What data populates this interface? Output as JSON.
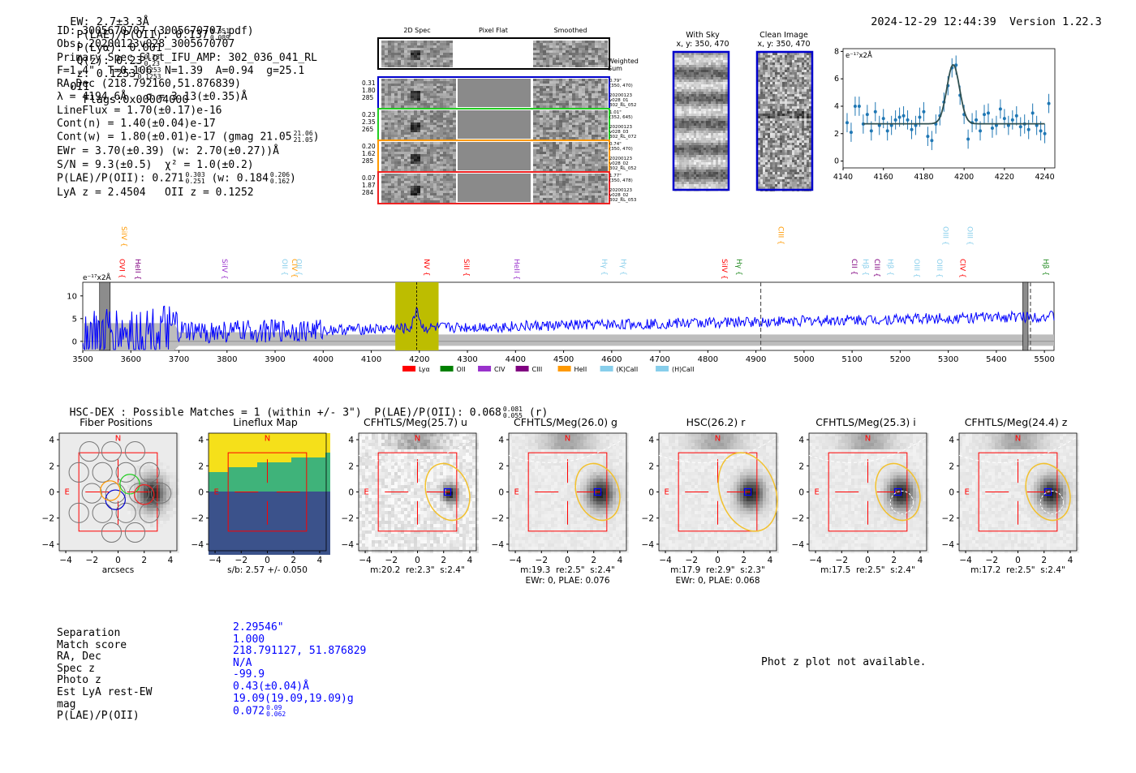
{
  "header": {
    "ew": "EW: 2.7±3.3Å",
    "plae_label": "P(LAE)/P(OII): 0.137",
    "plae_hi": "0.351",
    "plae_lo": "0.089",
    "plya": "P(Lyα): 0.001",
    "qz_label": "Q(z): 0.23",
    "qz_hi": "0.23",
    "qz_lo": "0.23",
    "z_label": "z: 0.1253",
    "z_hi": "0.1253",
    "z_lo": "0.1253",
    "z_line": "OII",
    "flags": "Flags:0x00004000",
    "datetime": "2024-12-29 12:44:39",
    "version": "Version 1.22.3"
  },
  "info": {
    "id": "ID: 3005670707 (3005670707.pdf)",
    "obs": "Obs: 20200123v028_3005670707",
    "primary": "Primary Spec_Slot_IFU_AMP: 302_036_041_RL",
    "params": "F=1.4\"  T=0.106  N=1.39  A=0.94  g=25.1",
    "radec": "RA,Dec (218.792160,51.876839)",
    "lambda": "λ = 4194.6Å   σ = 3.13(±0.35)Å",
    "lineflux": "LineFlux = 1.70(±0.17)e-16",
    "contn": "Cont(n) = 1.40(±0.04)e-17",
    "contw": "Cont(w) = 1.80(±0.01)e-17 (gmag 21.05",
    "contw_hi": "21.06",
    "contw_lo": "21.05",
    "ewr": "EWr = 3.70(±0.39) (w: 2.70(±0.27))Å",
    "sn": "S/N = 9.3(±0.5)  χ² = 1.0(±0.2)",
    "plae": "P(LAE)/P(OII): 0.271",
    "plae_hi": "0.303",
    "plae_lo": "0.251",
    "plae_w": "(w: 0.184",
    "plae_w_hi": "0.206",
    "plae_w_lo": "0.162",
    "lya": "LyA z = 2.4504   OII z = 0.1252"
  },
  "stamps": {
    "col_titles": [
      "2D Spec",
      "Pixel Flat",
      "Smoothed"
    ],
    "weighted_sum": [
      "Weighted",
      "Sum"
    ],
    "rows": [
      {
        "left": [
          "0.31",
          "1.80",
          "285"
        ],
        "right": [
          "0.79\"",
          "(350, 470)",
          "",
          "20200123",
          "v028_01",
          "302_RL_052"
        ],
        "color": "#0000cc"
      },
      {
        "left": [
          "0.23",
          "2.35",
          "265"
        ],
        "right": [
          "1.01\"",
          "(352, 645)",
          "",
          "20200123",
          "v028_03",
          "302_RL_072"
        ],
        "color": "#22cc22"
      },
      {
        "left": [
          "0.20",
          "1.62",
          "285"
        ],
        "right": [
          "0.74\"",
          "(350, 470)",
          "",
          "20200123",
          "v028_02",
          "302_RL_052"
        ],
        "color": "#ff9900"
      },
      {
        "left": [
          "0.07",
          "1.87",
          "284"
        ],
        "right": [
          "1.77\"",
          "(350, 478)",
          "",
          "20200123",
          "v028_02",
          "302_RL_053"
        ],
        "color": "#ee2222"
      }
    ],
    "with_sky": "With Sky",
    "with_sky_xy": "x, y: 350, 470",
    "clean": "Clean Image",
    "clean_xy": "x, y: 350, 470"
  },
  "colors": {
    "spectrum": "#0000ff",
    "fit": "#1f77b4",
    "highlight": "#bdbd00",
    "red": "#ff0000",
    "yellow": "#f2c12e",
    "hscblue": "#0000ff"
  },
  "chart_data": [
    {
      "type": "scatter",
      "title": "Line fit zoom",
      "ylabel": "e⁻¹⁷x2Å",
      "xlim": [
        4140,
        4245
      ],
      "ylim": [
        -0.5,
        8.2
      ],
      "xticks": [
        4140,
        4160,
        4180,
        4200,
        4220,
        4240
      ],
      "yticks": [
        0,
        2,
        4,
        6,
        8
      ],
      "x": [
        4142,
        4144,
        4146,
        4148,
        4150,
        4152,
        4154,
        4156,
        4158,
        4160,
        4162,
        4164,
        4166,
        4168,
        4170,
        4172,
        4174,
        4176,
        4178,
        4180,
        4182,
        4184,
        4186,
        4188,
        4190,
        4192,
        4194,
        4196,
        4198,
        4200,
        4202,
        4204,
        4206,
        4208,
        4210,
        4212,
        4214,
        4216,
        4218,
        4220,
        4222,
        4224,
        4226,
        4228,
        4230,
        4232,
        4234,
        4236,
        4238,
        4240,
        4242
      ],
      "y": [
        2.8,
        2.1,
        4.0,
        4.0,
        2.7,
        3.4,
        2.2,
        3.6,
        2.6,
        3.1,
        2.2,
        2.6,
        3.0,
        3.2,
        3.3,
        3.0,
        2.3,
        2.6,
        3.2,
        3.6,
        1.8,
        1.5,
        2.7,
        3.3,
        4.3,
        5.5,
        6.8,
        7.0,
        4.8,
        3.4,
        1.6,
        2.8,
        3.0,
        2.2,
        3.4,
        3.5,
        2.4,
        2.6,
        3.8,
        3.1,
        2.6,
        3.0,
        3.3,
        2.5,
        2.7,
        2.3,
        3.5,
        2.6,
        2.2,
        2.0,
        4.2
      ],
      "fit": {
        "continuum": 2.72,
        "amplitude": 4.3,
        "center": 4194.6,
        "sigma": 3.13,
        "xrange": [
          4150,
          4240
        ]
      }
    },
    {
      "type": "line",
      "title": "Full spectrum",
      "ylabel": "e⁻¹⁷x2Å",
      "xlim": [
        3500,
        5520
      ],
      "ylim": [
        -2,
        13
      ],
      "xticks": [
        3500,
        3600,
        3700,
        3800,
        3900,
        4000,
        4100,
        4200,
        4300,
        4400,
        4500,
        4600,
        4700,
        4800,
        4900,
        5000,
        5100,
        5200,
        5300,
        5400,
        5500
      ],
      "yticks": [
        0,
        5,
        10
      ],
      "highlight_range": [
        4150,
        4240
      ],
      "line_center": 4194.6,
      "dashed_lines": [
        4910,
        5471
      ],
      "grey_bands": [
        [
          3535,
          3557
        ],
        [
          5455,
          5466
        ]
      ],
      "line_labels": [
        {
          "name": "SiIV",
          "wave": 3576,
          "row": 0,
          "color": "#ff9900"
        },
        {
          "name": "OVI",
          "wave": 3572,
          "row": 1,
          "color": "#ff0000"
        },
        {
          "name": "HeII",
          "wave": 3605,
          "row": 1,
          "color": "#800080"
        },
        {
          "name": "SiIV",
          "wave": 3785,
          "row": 1,
          "color": "#9932cc"
        },
        {
          "name": "OII",
          "wave": 3910,
          "row": 1,
          "color": "#87ceeb"
        },
        {
          "name": "CIV",
          "wave": 3930,
          "row": 1,
          "color": "#ff9900"
        },
        {
          "name": "OII",
          "wave": 3940,
          "row": 1,
          "color": "#87ceeb"
        },
        {
          "name": "NV",
          "wave": 4205,
          "row": 1,
          "color": "#ff0000"
        },
        {
          "name": "SiII",
          "wave": 4288,
          "row": 1,
          "color": "#ff0000"
        },
        {
          "name": "HeII",
          "wave": 4393,
          "row": 1,
          "color": "#9932cc"
        },
        {
          "name": "Hγ",
          "wave": 4575,
          "row": 1,
          "color": "#87ceeb"
        },
        {
          "name": "Hγ",
          "wave": 4615,
          "row": 1,
          "color": "#87ceeb"
        },
        {
          "name": "CIII",
          "wave": 4942,
          "row": 0,
          "color": "#ff9900"
        },
        {
          "name": "SiIV",
          "wave": 4825,
          "row": 1,
          "color": "#ff0000"
        },
        {
          "name": "Hγ",
          "wave": 4855,
          "row": 1,
          "color": "#228b22"
        },
        {
          "name": "CII",
          "wave": 5095,
          "row": 1,
          "color": "#800080"
        },
        {
          "name": "Hβ",
          "wave": 5118,
          "row": 1,
          "color": "#87ceeb"
        },
        {
          "name": "CIII",
          "wave": 5142,
          "row": 1,
          "color": "#800080"
        },
        {
          "name": "Hβ",
          "wave": 5170,
          "row": 1,
          "color": "#87ceeb"
        },
        {
          "name": "OIII",
          "wave": 5285,
          "row": 0,
          "color": "#87ceeb"
        },
        {
          "name": "OIII",
          "wave": 5335,
          "row": 0,
          "color": "#87ceeb"
        },
        {
          "name": "OIII",
          "wave": 5225,
          "row": 1,
          "color": "#87ceeb"
        },
        {
          "name": "OIII",
          "wave": 5272,
          "row": 1,
          "color": "#87ceeb"
        },
        {
          "name": "CIV",
          "wave": 5320,
          "row": 1,
          "color": "#ff0000"
        },
        {
          "name": "Hβ",
          "wave": 5493,
          "row": 1,
          "color": "#228b22"
        }
      ],
      "legend": [
        {
          "name": "Lyα",
          "color": "#ff0000"
        },
        {
          "name": "OII",
          "color": "#008000"
        },
        {
          "name": "CIV",
          "color": "#9932cc"
        },
        {
          "name": "CIII",
          "color": "#800080"
        },
        {
          "name": "HeII",
          "color": "#ff9900"
        },
        {
          "name": "(K)CaII",
          "color": "#87ceeb"
        },
        {
          "name": "(H)CaII",
          "color": "#87ceeb"
        }
      ]
    }
  ],
  "hsc": {
    "match_text": "HSC-DEX : Possible Matches = 1 (within +/- 3\")",
    "plae": "P(LAE)/P(OII): 0.068",
    "plae_hi": "0.081",
    "plae_lo": "0.055",
    "band": "(r)",
    "axis_ticks": [
      "4",
      "2",
      "0",
      "−2",
      "−4"
    ],
    "x_ticks": [
      "−4",
      "−2",
      "0",
      "2",
      "4"
    ],
    "north": "N",
    "east": "E",
    "panels": [
      {
        "title": "Fiber Positions",
        "cap1": "arcsecs",
        "cap2": ""
      },
      {
        "title": "Lineflux Map",
        "cap1": "s/b: 2.57 +/- 0.050",
        "cap2": ""
      },
      {
        "title": "CFHTLS/Meg(25.7) u",
        "cap1": "m:20.2  re:2.3\"  s:2.4\"",
        "cap2": ""
      },
      {
        "title": "CFHTLS/Meg(26.0) g",
        "cap1": "m:19.3  re:2.5\"  s:2.4\"",
        "cap2": "EWr: 0, PLAE: 0.076"
      },
      {
        "title": "HSC(26.2) r",
        "cap1": "m:17.9  re:2.9\"  s:2.3\"",
        "cap2": "EWr: 0, PLAE: 0.068"
      },
      {
        "title": "CFHTLS/Meg(25.3) i",
        "cap1": "m:17.5  re:2.5\"  s:2.4\"",
        "cap2": ""
      },
      {
        "title": "CFHTLS/Meg(24.4) z",
        "cap1": "m:17.2  re:2.5\"  s:2.4\"",
        "cap2": ""
      }
    ]
  },
  "match": {
    "keys": [
      "Separation",
      "Match score",
      "RA, Dec",
      "Spec z",
      "Photo z",
      "Est LyA rest-EW",
      "mag",
      "P(LAE)/P(OII)"
    ],
    "values": [
      "2.29546\"",
      "1.000",
      "218.791127, 51.876829",
      "N/A",
      "-99.9",
      "0.43(±0.04)Å",
      "19.09(19.09,19.09)g",
      "0.072"
    ],
    "plae_hi": "0.09",
    "plae_lo": "0.062"
  },
  "photz": "Phot z plot not available."
}
